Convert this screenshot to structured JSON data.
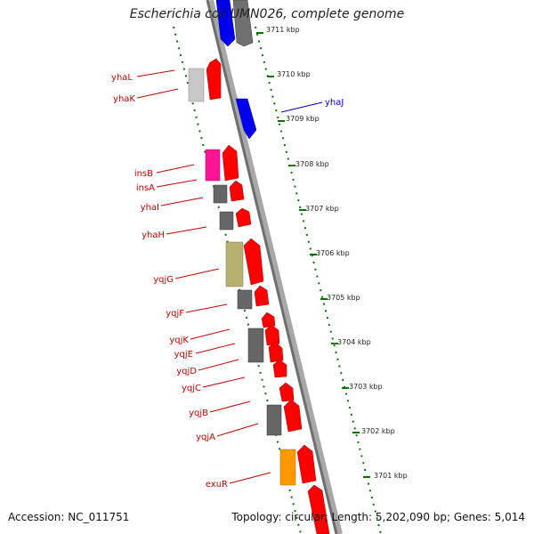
{
  "title": "Escherichia coli UMN026, complete genome",
  "footer": {
    "accession": "Accession: NC_011751",
    "summary": "Topology: circular; Length: 5,202,090 bp; Genes: 5,014"
  },
  "colors": {
    "forward_gene": "#ff0000",
    "reverse_gene_blue": "#0000ee",
    "reverse_gene_grey": "#777777",
    "insertion_pink": "#ff1493",
    "khaki": "#b8b070",
    "orange": "#ff9900",
    "label_red": "#cc0000",
    "label_blue": "#0000cc",
    "tick_green": "#007700",
    "backbone": "#808080"
  },
  "ticks": [
    "3711 kbp",
    "3710 kbp",
    "3709 kbp",
    "3708 kbp",
    "3707 kbp",
    "3706 kbp",
    "3705 kbp",
    "3704 kbp",
    "3703 kbp",
    "3702 kbp",
    "3701 kbp"
  ],
  "gene_labels": {
    "yhaL": "yhaL",
    "yhaK": "yhaK",
    "yhaJ": "yhaJ",
    "insB": "insB",
    "insA": "insA",
    "yhaI": "yhaI",
    "yhaH": "yhaH",
    "yqjG": "yqjG",
    "yqjF": "yqjF",
    "yqjK": "yqjK",
    "yqjE": "yqjE",
    "yqjD": "yqjD",
    "yqjC": "yqjC",
    "yqjB": "yqjB",
    "yqjA": "yqjA",
    "exuR": "exuR"
  }
}
